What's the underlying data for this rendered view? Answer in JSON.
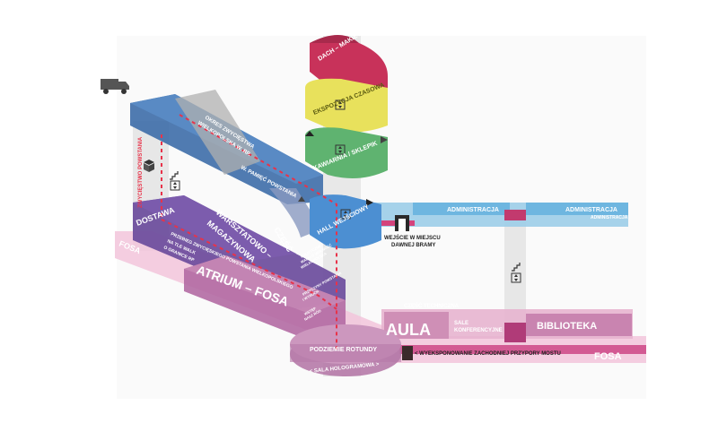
{
  "colors": {
    "roof": "#c8325a",
    "exhibition": "#e6e05a",
    "cafe": "#5fb16e",
    "hall": "#4a8fd0",
    "admin": "#6bb3e3",
    "warehouse": "#6a4a9a",
    "delivery": "#5f4590",
    "atrium": "#a55a9a",
    "moat": "#e8a8c8",
    "aula": "#d79bc0",
    "crossing": "#8a3a6a",
    "dashed_path": "#e8334a",
    "ramp": "#2f6fb0",
    "core": "#d8d8d8"
  },
  "levels": {
    "roof": "DACH – MAKIETA POZNANIA",
    "exhibition": "EKSPOZYCJA CZASOWA",
    "cafe": "KAWIARNIA / SKLEPIK",
    "hall": "HALL WEJŚCIOWY",
    "basement": "PODZIEMIE ROTUNDY",
    "hologram": "< SALA HOLOGRAMOWA >"
  },
  "ramp": {
    "line1": "OKRES ZWYCIĘSTWA",
    "line2": "WIELKOPOLSKA W. RP.",
    "line3": "W. PAMIĘĆ POWSTANIA"
  },
  "delivery": {
    "label": "DOSTAWA",
    "vertical": "ZWYCIĘSTWO POWSTANIA"
  },
  "warehouse": {
    "title_1": "CZĘŚĆ",
    "title_2": "WARSZTATOWO –",
    "title_3": "MAGAZYNOWA",
    "sub_1": "PRZEBIEG ZWYCIĘSKIEGO POWSTANIA WIELKOPOLSKIEGO",
    "sub_2": "NA TLE WALK",
    "sub_3": "O GRANICE RP",
    "info_1": "POLITYCZNE",
    "info_2": "WALKI O WOLNOŚĆ",
    "info_3": "WIELKOPOLSKA",
    "info_4": "PRZYCZYNY POWSTANIA",
    "info_5": "I WYBUCH",
    "info_6": "WSTĘP",
    "info_7": "NASZ RÓD"
  },
  "atrium": {
    "label": "ATRIUM – FOSA"
  },
  "moat": {
    "left": "FOSA",
    "right": "FOSA"
  },
  "admin": {
    "left": "ADMINISTRACJA",
    "right": "ADMINISTRACJA",
    "right_lower": "ADMINISTRACJA"
  },
  "gate": {
    "line1": "WEJŚCIE W MIEJSCU",
    "line2": "DAWNEJ BRAMY"
  },
  "technical": "CZĘŚĆ TECHNICZNA",
  "aula": "AULA",
  "conference": {
    "line1": "SALE",
    "line2": "KONFERENCYJNE"
  },
  "library": "BIBLIOTEKA",
  "buttress": "< WYEKSPONOWANIE ZACHODNIEJ PRZYPORY MOSTU",
  "icons": [
    "truck-icon",
    "box-icon",
    "stairs-icon",
    "elevator-icon"
  ]
}
